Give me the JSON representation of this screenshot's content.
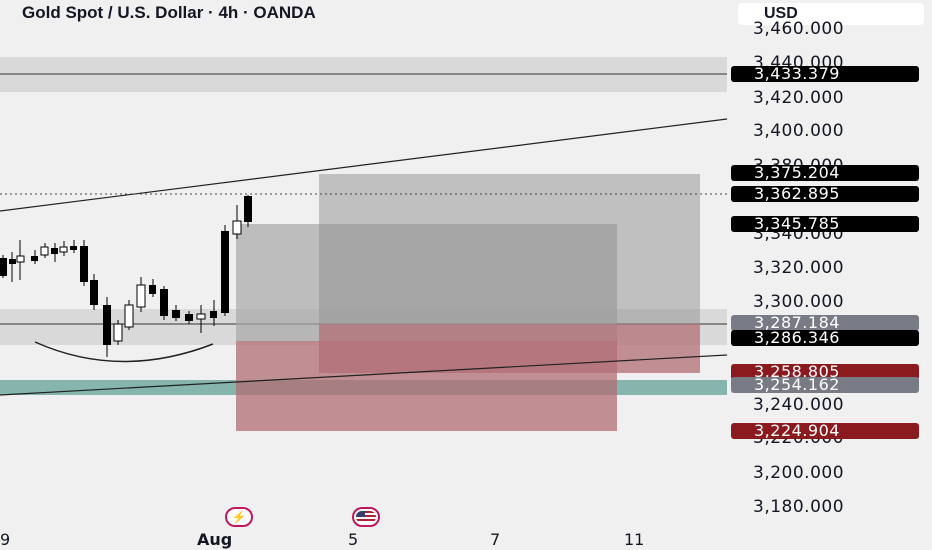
{
  "header": {
    "title": "Gold Spot / U.S. Dollar · 4h · OANDA",
    "currency": "USD"
  },
  "price_axis": {
    "labels": [
      "3,460.000",
      "3,440.000",
      "3,420.000",
      "3,400.000",
      "3,380.000",
      "3,340.000",
      "3,320.000",
      "3,300.000",
      "3,240.000",
      "3,220.000",
      "3,200.000",
      "3,180.000"
    ]
  },
  "price_badges": [
    {
      "text": "3,433.379",
      "value": 3433.379,
      "style": "black"
    },
    {
      "text": "3,375.204",
      "value": 3375.204,
      "style": "black"
    },
    {
      "text": "3,362.895",
      "value": 3362.895,
      "style": "black"
    },
    {
      "text": "3,345.785",
      "value": 3345.785,
      "style": "black"
    },
    {
      "text": "3,287.184",
      "value": 3287.184,
      "style": "gray"
    },
    {
      "text": "3,286.346",
      "value": 3286.346,
      "style": "black"
    },
    {
      "text": "3,258.805",
      "value": 3258.805,
      "style": "red"
    },
    {
      "text": "3,254.162",
      "value": 3254.162,
      "style": "gray"
    },
    {
      "text": "3,224.904",
      "value": 3224.904,
      "style": "red"
    }
  ],
  "time_axis": {
    "labels": [
      {
        "text": "9",
        "bold": false
      },
      {
        "text": "Aug",
        "bold": true
      },
      {
        "text": "5",
        "bold": false
      },
      {
        "text": "7",
        "bold": false
      },
      {
        "text": "11",
        "bold": false
      }
    ]
  },
  "events": [
    {
      "name": "lightning-event-icon"
    },
    {
      "name": "us-flag-event-icon"
    }
  ],
  "colors": {
    "background": "#f0f0f0",
    "candle": "#000000",
    "zone_gray": "#d9d9d9",
    "zone_teal": "#86b5ad",
    "position_profit": "#9e9e9e",
    "position_loss": "#b26e75",
    "badge_black": "#000000",
    "badge_gray": "#787b86",
    "badge_red": "#8b1a1f"
  }
}
